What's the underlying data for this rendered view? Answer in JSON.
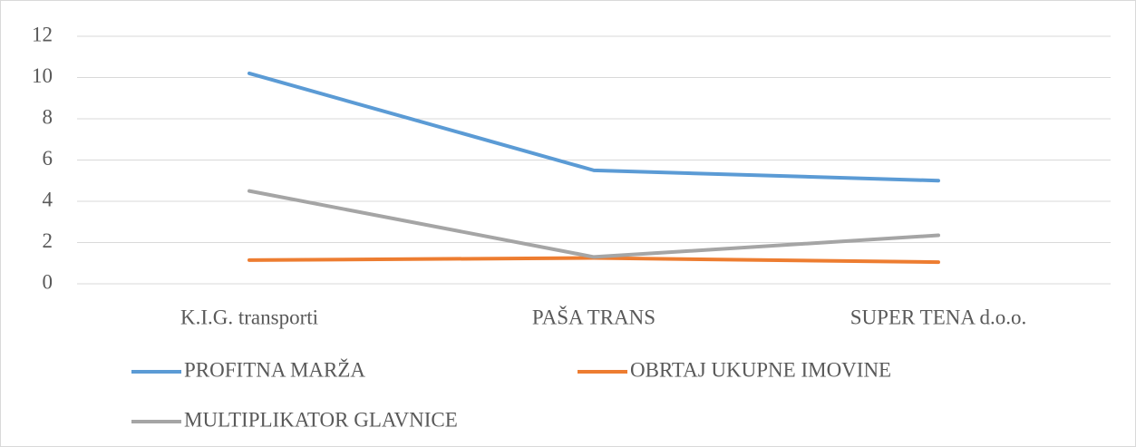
{
  "chart_data": {
    "type": "line",
    "categories": [
      "K.I.G. transporti",
      "PAŠA TRANS",
      "SUPER TENA d.o.o."
    ],
    "series": [
      {
        "name": "PROFITNA MARŽA",
        "color": "#5b9bd5",
        "values": [
          10.2,
          5.5,
          5.0
        ]
      },
      {
        "name": "OBRTAJ UKUPNE IMOVINE",
        "color": "#ed7d31",
        "values": [
          1.15,
          1.25,
          1.05
        ]
      },
      {
        "name": "MULTIPLIKATOR GLAVNICE",
        "color": "#a5a5a5",
        "values": [
          4.5,
          1.3,
          2.35
        ]
      }
    ],
    "ylim": [
      0,
      12
    ],
    "yticks": [
      0,
      2,
      4,
      6,
      8,
      10,
      12
    ],
    "grid": true,
    "legend": "bottom"
  }
}
